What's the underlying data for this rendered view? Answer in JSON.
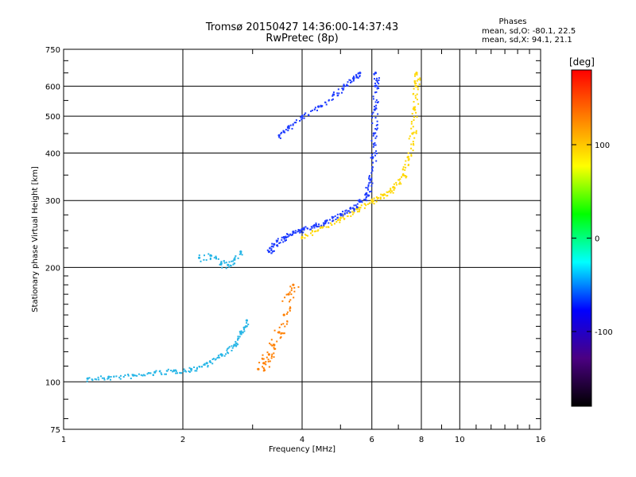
{
  "chart_data": {
    "type": "scatter",
    "title": "Tromsø 20150427 14:36:00-14:37:43",
    "subtitle": "RwPretec (8p)",
    "xlabel": "Frequency [MHz]",
    "ylabel": "Stationary phase Virtual Height [km]",
    "x_scale": "log",
    "y_scale": "log",
    "xlim": [
      1,
      16
    ],
    "ylim": [
      75,
      750
    ],
    "x_ticks": [
      1,
      2,
      4,
      6,
      8,
      10,
      16
    ],
    "y_ticks": [
      75,
      100,
      200,
      300,
      400,
      500,
      600,
      750
    ],
    "grid": true,
    "legend": {
      "title": "Phases",
      "line1": "mean, sd,O: -80.1, 22.5",
      "line2": "mean, sd,X:  94.1, 21.1"
    },
    "colorbar": {
      "label": "[deg]",
      "range": [
        -180,
        180
      ],
      "ticks": [
        100,
        0,
        -100
      ],
      "colors": [
        "#ff0000",
        "#ff8000",
        "#ffff00",
        "#00ff00",
        "#00ffff",
        "#0000ff",
        "#4b0082",
        "#000000"
      ]
    },
    "point_colors": {
      "o_trace": "#1e3cff",
      "x_trace": "#ffd700",
      "e_layer": "#25b5e6",
      "es_mixed": "#ff7f00"
    },
    "o_trace": [
      [
        3.3,
        220
      ],
      [
        3.4,
        230
      ],
      [
        3.6,
        240
      ],
      [
        3.8,
        248
      ],
      [
        4.0,
        252
      ],
      [
        4.3,
        258
      ],
      [
        4.6,
        265
      ],
      [
        5.0,
        276
      ],
      [
        5.3,
        286
      ],
      [
        5.6,
        298
      ],
      [
        5.8,
        312
      ],
      [
        5.95,
        340
      ],
      [
        6.03,
        390
      ],
      [
        6.07,
        450
      ],
      [
        6.1,
        520
      ],
      [
        6.12,
        600
      ],
      [
        6.13,
        650
      ]
    ],
    "x_trace": [
      [
        4.0,
        240
      ],
      [
        4.5,
        255
      ],
      [
        5.0,
        270
      ],
      [
        5.5,
        285
      ],
      [
        6.0,
        300
      ],
      [
        6.4,
        310
      ],
      [
        6.8,
        325
      ],
      [
        7.2,
        350
      ],
      [
        7.4,
        390
      ],
      [
        7.6,
        450
      ],
      [
        7.7,
        520
      ],
      [
        7.75,
        600
      ],
      [
        7.78,
        650
      ]
    ],
    "upper_trace": [
      [
        3.5,
        445
      ],
      [
        3.7,
        470
      ],
      [
        4.0,
        500
      ],
      [
        4.4,
        530
      ],
      [
        4.8,
        570
      ],
      [
        5.1,
        600
      ],
      [
        5.4,
        630
      ],
      [
        5.6,
        650
      ]
    ],
    "e_layer": [
      [
        1.15,
        102
      ],
      [
        1.3,
        103
      ],
      [
        1.5,
        104
      ],
      [
        1.7,
        106
      ],
      [
        1.9,
        107
      ],
      [
        2.1,
        108
      ],
      [
        2.3,
        112
      ],
      [
        2.5,
        118
      ],
      [
        2.7,
        125
      ],
      [
        2.8,
        135
      ],
      [
        2.9,
        145
      ]
    ],
    "e_cluster": [
      [
        2.2,
        212
      ],
      [
        2.35,
        215
      ],
      [
        2.5,
        205
      ],
      [
        2.6,
        203
      ],
      [
        2.7,
        210
      ],
      [
        2.8,
        220
      ]
    ],
    "es_cluster": [
      [
        3.1,
        108
      ],
      [
        3.2,
        112
      ],
      [
        3.3,
        118
      ],
      [
        3.4,
        125
      ],
      [
        3.5,
        135
      ],
      [
        3.6,
        150
      ],
      [
        3.7,
        170
      ],
      [
        3.8,
        180
      ]
    ]
  }
}
